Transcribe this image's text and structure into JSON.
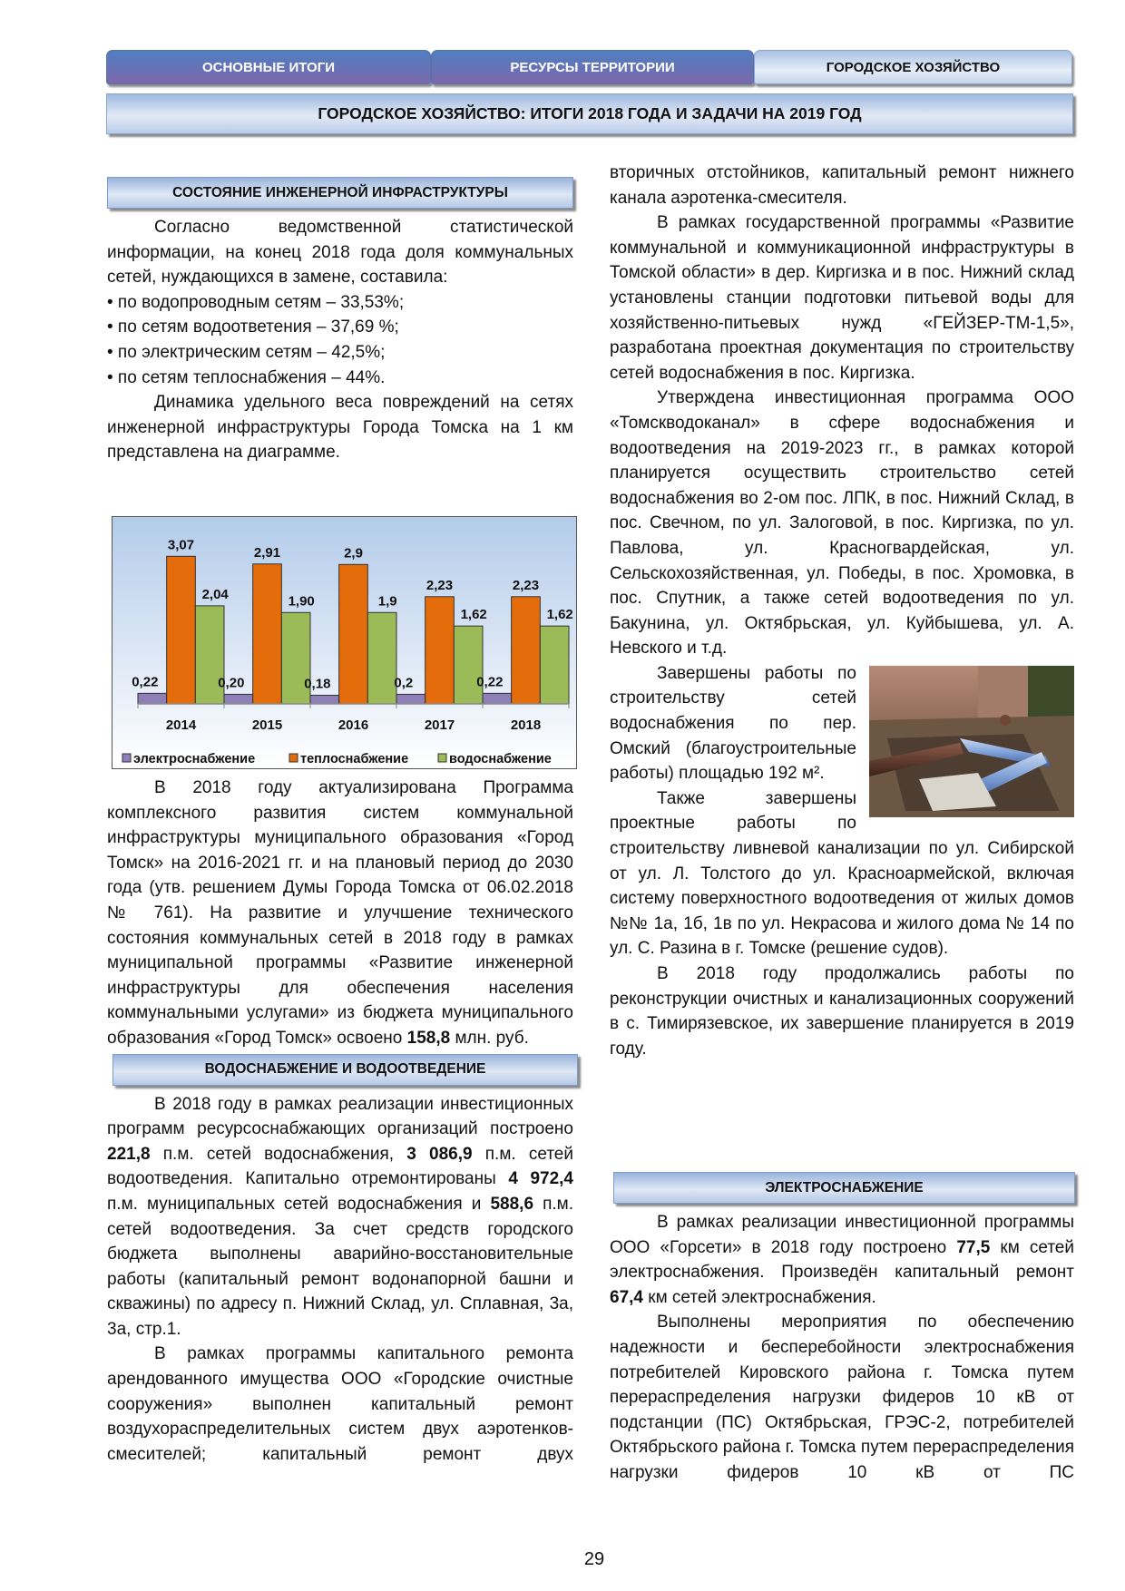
{
  "tabs": [
    {
      "label": "ОСНОВНЫЕ ИТОГИ",
      "active": false
    },
    {
      "label": "РЕСУРСЫ ТЕРРИТОРИИ",
      "active": false
    },
    {
      "label": "ГОРОДСКОЕ ХОЗЯЙСТВО",
      "active": true
    }
  ],
  "page_title": "ГОРОДСКОЕ ХОЗЯЙСТВО: ИТОГИ 2018 ГОДА И ЗАДАЧИ НА 2019 ГОД",
  "colors": {
    "tab_dark_top": "#4f7fc2",
    "tab_dark_bottom": "#7a68aa",
    "header_light": "#dfe8f5"
  },
  "left": {
    "section1_title": "СОСТОЯНИЕ ИНЖЕНЕРНОЙ ИНФРАСТРУКТУРЫ",
    "p1": [
      {
        "t": "Согласно ведомственной статистической информации, на конец 2018 года доля коммунальных сетей, нуждающихся в замене, составила:"
      }
    ],
    "bullets": [
      "• по водопроводным сетям – 33,53%;",
      "• по сетям водоответения – 37,69 %;",
      "• по электрическим сетям – 42,5%;",
      "• по сетям теплоснабжения – 44%."
    ],
    "p2": [
      {
        "t": "Динамика удельного веса повреждений на сетях инженерной инфраструктуры Города Томска на 1 км представлена на диаграмме."
      }
    ],
    "p3": [
      {
        "t": "В 2018 году актуализирована Программа комплексного развития систем коммунальной инфраструктуры муниципального образования «Город Томск» на 2016-2021 гг. и на плановый период до 2030 года (утв. решением Думы Города Томска от 06.02.2018 № 761). На развитие и улучшение технического состояния коммунальных сетей в 2018 году в рамках муниципальной программы «Развитие инженерной инфраструктуры для обеспечения населения коммунальными услугами» из бюджета муниципального образования «Город Томск» освоено "
      },
      {
        "t": "158,8",
        "b": true
      },
      {
        "t": " млн. руб."
      }
    ],
    "section2_title": "ВОДОСНАБЖЕНИЕ И ВОДООТВЕДЕНИЕ",
    "p4": [
      {
        "t": "В 2018 году в рамках реализации инвестиционных программ ресурсоснабжающих организаций построено "
      },
      {
        "t": "221,8",
        "b": true
      },
      {
        "t": " п.м. сетей водоснабжения, "
      },
      {
        "t": "3 086,9",
        "b": true
      },
      {
        "t": " п.м. сетей водоотведения. Капитально отремонтированы "
      },
      {
        "t": "4 972,4",
        "b": true
      },
      {
        "t": " п.м. муниципальных сетей водоснабжения и "
      },
      {
        "t": "588,6",
        "b": true
      },
      {
        "t": " п.м. сетей водоотведения. За счет средств городского бюджета выполнены аварийно-восстановительные работы (капитальный ремонт водонапорной башни и скважины) по адресу п. Нижний Склад, ул. Сплавная, 3а, 3а, стр.1."
      }
    ],
    "p5": [
      {
        "t": "В рамках программы капитального ремонта арендованного имущества ООО «Городские очистные сооружения» выполнен капитальный ремонт воздухораспределительных систем двух аэротенков-смесителей; капитальный ремонт двух"
      }
    ]
  },
  "right": {
    "p1": [
      {
        "t": "вторичных отстойников, капитальный ремонт нижнего канала аэротенка-смесителя."
      }
    ],
    "p2": [
      {
        "t": "В рамках государственной программы «Развитие коммунальной и коммуникационной инфраструктуры в Томской области» в дер. Киргизка и в пос. Нижний склад установлены станции подготовки питьевой воды для хозяйственно-питьевых нужд «ГЕЙЗЕР-ТМ-1,5», разработана проектная документация по строительству сетей водоснабжения в пос. Киргизка."
      }
    ],
    "p3": [
      {
        "t": "Утверждена инвестиционная программа ООО «Томскводоканал» в сфере водоснабжения и водоотведения на 2019-2023 гг., в рамках которой планируется осуществить строительство сетей водоснабжения во 2-ом пос. ЛПК, в пос. Нижний Склад, в пос. Свечном, по ул. Залоговой, в пос. Киргизка, по ул. Павлова, ул. Красногвардейская, ул. Сельскохозяйственная, ул. Победы, в пос. Хромовка, в пос. Спутник, а также сетей водоотведения по ул. Бакунина, ул. Октябрьская, ул. Куйбышева, ул. А. Невского и т.д."
      }
    ],
    "p4": [
      {
        "t": "Завершены работы по строительству сетей водоснабжения по пер. Омский (благоустроительные работы) площадью 192 м²."
      }
    ],
    "p5": [
      {
        "t": "Также завершены проектные работы по строительству ливневой канализации по ул. Сибирской от ул. Л. Толстого до ул. Красноармейской, включая систему поверхностного водоотведения от жилых домов №№ 1а, 1б, 1в по ул. Некрасова и жилого дома № 14 по ул. С. Разина в г. Томске (решение судов)."
      }
    ],
    "p6": [
      {
        "t": "В 2018 году продолжались работы по реконструкции очистных и канализационных сооружений в с. Тимирязевское, их завершение планируется в 2019 году."
      }
    ],
    "section3_title": "ЭЛЕКТРОСНАБЖЕНИЕ",
    "p7": [
      {
        "t": "В рамках реализации инвестиционной программы ООО «Горсети» в 2018 году построено "
      },
      {
        "t": "77,5",
        "b": true
      },
      {
        "t": " км сетей электроснабжения. Произведён капитальный ремонт "
      },
      {
        "t": "67,4",
        "b": true
      },
      {
        "t": " км сетей электроснабжения."
      }
    ],
    "p8": [
      {
        "t": "Выполнены мероприятия по обеспечению надежности и бесперебойности электроснабжения потребителей Кировского района г. Томска путем перераспределения нагрузки фидеров 10 кВ от подстанции (ПС) Октябрьская, ГРЭС-2, потребителей Октябрьского района г. Томска путем перераспределения нагрузки фидеров 10 кВ от ПС"
      }
    ]
  },
  "page_number": "29",
  "chart_data": {
    "type": "bar",
    "categories": [
      "2014",
      "2015",
      "2016",
      "2017",
      "2018"
    ],
    "series": [
      {
        "name": "электроснабжение",
        "values": [
          0.22,
          0.2,
          0.18,
          0.2,
          0.22
        ],
        "labels": [
          "0,22",
          "0,20",
          "0,18",
          "0,2",
          "0,22"
        ],
        "color": "#8f7fb8"
      },
      {
        "name": "теплоснабжение",
        "values": [
          3.07,
          2.91,
          2.9,
          2.23,
          2.23
        ],
        "labels": [
          "3,07",
          "2,91",
          "2,9",
          "2,23",
          "2,23"
        ],
        "color": "#e46c0a"
      },
      {
        "name": "водоснабжение",
        "values": [
          2.04,
          1.9,
          1.9,
          1.62,
          1.62
        ],
        "labels": [
          "2,04",
          "1,90",
          "1,9",
          "1,62",
          "1,62"
        ],
        "color": "#9bbb59"
      }
    ],
    "legend": "bottom",
    "grid": false,
    "background": [
      "#b3cbea",
      "#ffffff"
    ]
  }
}
